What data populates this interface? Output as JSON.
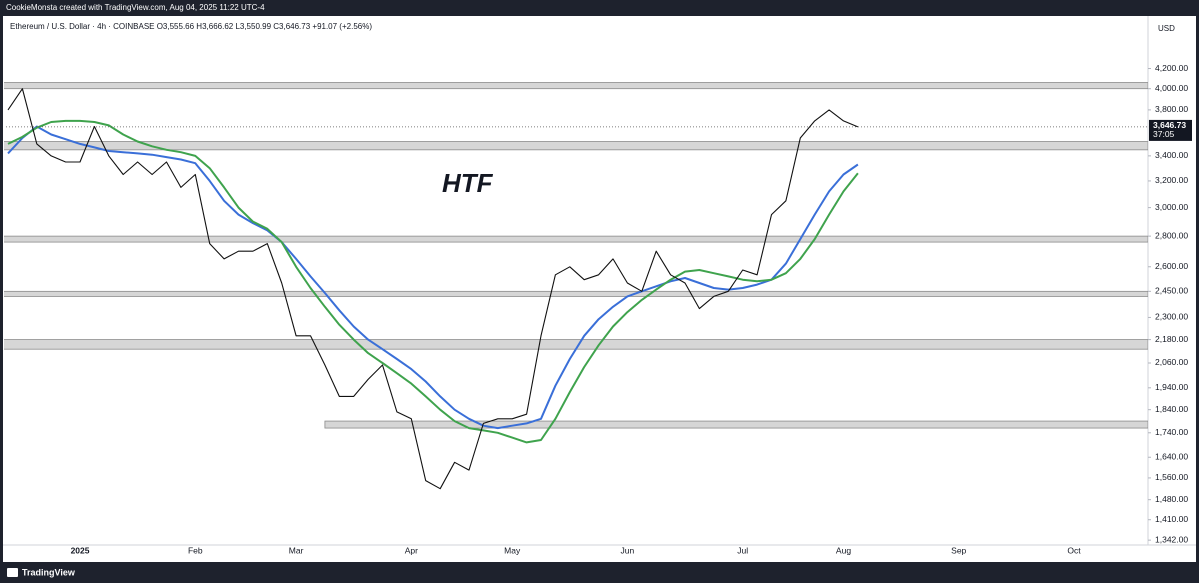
{
  "credit": "CookieMonsta created with TradingView.com, Aug 04, 2025 11:22 UTC-4",
  "brand": "TradingView",
  "chart_data": {
    "type": "line",
    "title": "Ethereum / U.S. Dollar · 4h · COINBASE  O3,555.66  H3,666.62  L3,550.99  C3,646.73  +91.07 (+2.56%)",
    "y_axis_label": "USD",
    "annotation": "HTF",
    "log_scale": true,
    "grid": false,
    "ylim": [
      1336,
      4500
    ],
    "yticks": [
      {
        "value": 4200,
        "label": "4,200.00"
      },
      {
        "value": 4000,
        "label": "4,000.00"
      },
      {
        "value": 3800,
        "label": "3,800.00"
      },
      {
        "value": 3400,
        "label": "3,400.00"
      },
      {
        "value": 3200,
        "label": "3,200.00"
      },
      {
        "value": 3000,
        "label": "3,000.00"
      },
      {
        "value": 2800,
        "label": "2,800.00"
      },
      {
        "value": 2600,
        "label": "2,600.00"
      },
      {
        "value": 2450,
        "label": "2,450.00"
      },
      {
        "value": 2300,
        "label": "2,300.00"
      },
      {
        "value": 2180,
        "label": "2,180.00"
      },
      {
        "value": 2060,
        "label": "2,060.00"
      },
      {
        "value": 1940,
        "label": "1,940.00"
      },
      {
        "value": 1840,
        "label": "1,840.00"
      },
      {
        "value": 1740,
        "label": "1,740.00"
      },
      {
        "value": 1640,
        "label": "1,640.00"
      },
      {
        "value": 1560,
        "label": "1,560.00"
      },
      {
        "value": 1480,
        "label": "1,480.00"
      },
      {
        "value": 1410,
        "label": "1,410.00"
      },
      {
        "value": 1342,
        "label": "1,342.00"
      }
    ],
    "categories": [
      null,
      null,
      null,
      null,
      null,
      "2025",
      null,
      null,
      null,
      null,
      null,
      null,
      null,
      "Feb",
      null,
      null,
      null,
      null,
      null,
      null,
      "Mar",
      null,
      null,
      null,
      null,
      null,
      null,
      null,
      "Apr",
      null,
      null,
      null,
      null,
      null,
      null,
      "May",
      null,
      null,
      null,
      null,
      null,
      null,
      null,
      "Jun",
      null,
      null,
      null,
      null,
      null,
      null,
      null,
      "Jul",
      null,
      null,
      null,
      null,
      null,
      null,
      "Aug",
      null,
      null,
      null,
      null,
      null,
      null,
      null,
      "Sep",
      null,
      null,
      null,
      null,
      null,
      null,
      null,
      "Oct",
      null,
      null,
      null,
      null,
      null
    ],
    "series": [
      {
        "color": "#111111",
        "values": [
          3800,
          4000,
          3500,
          3400,
          3350,
          3350,
          3650,
          3400,
          3250,
          3350,
          3250,
          3350,
          3150,
          3250,
          2750,
          2650,
          2700,
          2700,
          2750,
          2500,
          2200,
          2200,
          2050,
          1900,
          1900,
          1980,
          2050,
          1830,
          1800,
          1550,
          1520,
          1620,
          1590,
          1780,
          1800,
          1800,
          1820,
          2200,
          2550,
          2600,
          2520,
          2550,
          2650,
          2500,
          2450,
          2700,
          2550,
          2500,
          2350,
          2420,
          2450,
          2580,
          2550,
          2950,
          3050,
          3550,
          3700,
          3800,
          3700,
          3646.73,
          null,
          null,
          null,
          null,
          null,
          null,
          null,
          null,
          null,
          null,
          null,
          null,
          null,
          null,
          null,
          null,
          null,
          null,
          null,
          null
        ]
      },
      {
        "color": "#3a6fd8",
        "values": [
          3420,
          3550,
          3650,
          3580,
          3540,
          3500,
          3470,
          3440,
          3430,
          3420,
          3410,
          3390,
          3370,
          3340,
          3200,
          3050,
          2950,
          2890,
          2840,
          2760,
          2650,
          2540,
          2440,
          2340,
          2250,
          2180,
          2130,
          2080,
          2030,
          1970,
          1900,
          1840,
          1800,
          1770,
          1760,
          1770,
          1780,
          1800,
          1950,
          2080,
          2200,
          2290,
          2360,
          2420,
          2450,
          2480,
          2510,
          2530,
          2500,
          2470,
          2460,
          2470,
          2490,
          2520,
          2620,
          2780,
          2950,
          3120,
          3250,
          3330,
          null,
          null,
          null,
          null,
          null,
          null,
          null,
          null,
          null,
          null,
          null,
          null,
          null,
          null,
          null,
          null,
          null,
          null,
          null,
          null
        ]
      },
      {
        "color": "#3fa34d",
        "values": [
          3500,
          3560,
          3640,
          3690,
          3700,
          3700,
          3690,
          3660,
          3580,
          3520,
          3480,
          3450,
          3430,
          3400,
          3300,
          3150,
          3000,
          2900,
          2850,
          2760,
          2600,
          2470,
          2360,
          2260,
          2180,
          2110,
          2060,
          2010,
          1960,
          1900,
          1840,
          1790,
          1760,
          1750,
          1740,
          1720,
          1700,
          1710,
          1800,
          1920,
          2040,
          2150,
          2250,
          2330,
          2400,
          2460,
          2520,
          2570,
          2580,
          2560,
          2540,
          2520,
          2510,
          2520,
          2560,
          2650,
          2780,
          2950,
          3120,
          3260,
          null,
          null,
          null,
          null,
          null,
          null,
          null,
          null,
          null,
          null,
          null,
          null,
          null,
          null,
          null,
          null,
          null,
          null,
          null,
          null
        ]
      }
    ],
    "zones": [
      {
        "low": 4000,
        "high": 4060
      },
      {
        "low": 3450,
        "high": 3520
      },
      {
        "low": 2760,
        "high": 2800
      },
      {
        "low": 2420,
        "high": 2450
      },
      {
        "low": 2130,
        "high": 2180
      },
      {
        "low": 1760,
        "high": 1790,
        "start": 22
      }
    ],
    "last_price": {
      "value": 3646.73,
      "label": "3,646.73",
      "countdown": "37:05"
    }
  }
}
